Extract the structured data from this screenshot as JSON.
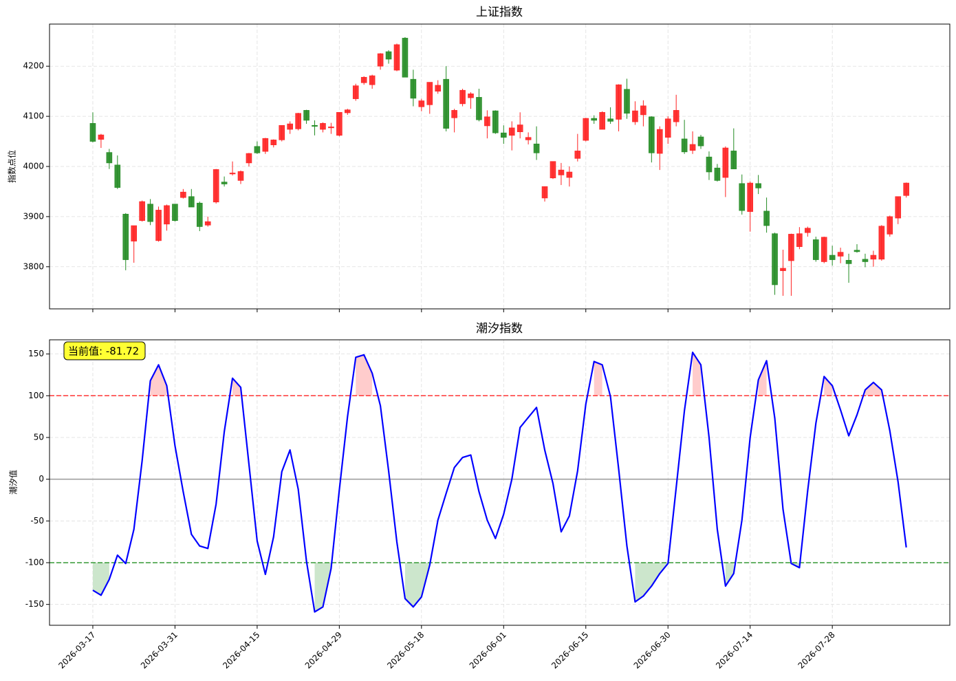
{
  "chart_data": [
    {
      "type": "candlestick",
      "title": "上证指数",
      "ylabel": "指数点位",
      "open": [
        4086,
        4054,
        4028,
        4003,
        3905,
        3851,
        3892,
        3925,
        3852,
        3885,
        3925,
        3938,
        3940,
        3927,
        3883,
        3929,
        3969,
        3985,
        3972,
        4007,
        4040,
        4030,
        4043,
        4053,
        4074,
        4075,
        4112,
        4082,
        4074,
        4077,
        4062,
        4107,
        4135,
        4167,
        4163,
        4200,
        4229,
        4192,
        4256,
        4174,
        4119,
        4123,
        4150,
        4174,
        4097,
        4125,
        4137,
        4138,
        4081,
        4111,
        4067,
        4062,
        4069,
        4053,
        4045,
        3937,
        3977,
        3983,
        3978,
        4016,
        4052,
        4096,
        4074,
        4095,
        4094,
        4154,
        4089,
        4103,
        4099,
        4026,
        4058,
        4089,
        4055,
        4032,
        4059,
        4019,
        3997,
        3978,
        4031,
        3966,
        3910,
        3966,
        3911,
        3866,
        3792,
        3812,
        3840,
        3868,
        3854,
        3810,
        3823,
        3821,
        3813,
        3833,
        3815,
        3815,
        3815,
        3865,
        3897,
        3942
      ],
      "high": [
        4108,
        4065,
        4035,
        4022,
        3907,
        3882,
        3932,
        3935,
        3920,
        3924,
        3925,
        3955,
        3955,
        3930,
        3900,
        3995,
        3980,
        4010,
        3992,
        4027,
        4050,
        4057,
        4054,
        4082,
        4090,
        4107,
        4113,
        4092,
        4088,
        4087,
        4108,
        4115,
        4165,
        4180,
        4183,
        4226,
        4232,
        4245,
        4258,
        4193,
        4135,
        4168,
        4172,
        4200,
        4115,
        4155,
        4148,
        4155,
        4112,
        4112,
        4082,
        4090,
        4108,
        4068,
        4080,
        3960,
        4010,
        4007,
        4000,
        4065,
        4097,
        4102,
        4110,
        4118,
        4164,
        4175,
        4130,
        4132,
        4100,
        4080,
        4100,
        4143,
        4093,
        4070,
        4063,
        4030,
        4005,
        4040,
        4076,
        3984,
        3970,
        3983,
        3938,
        3868,
        3834,
        3866,
        3879,
        3880,
        3860,
        3860,
        3842,
        3838,
        3826,
        3845,
        3826,
        3832,
        3883,
        3902,
        3940,
        3968
      ],
      "low": [
        4048,
        4037,
        3995,
        3955,
        3793,
        3808,
        3890,
        3883,
        3850,
        3872,
        3890,
        3936,
        3920,
        3871,
        3880,
        3926,
        3960,
        3982,
        3965,
        4000,
        4025,
        4025,
        4038,
        4050,
        4065,
        4072,
        4085,
        4062,
        4068,
        4065,
        4060,
        4103,
        4131,
        4163,
        4155,
        4193,
        4205,
        4190,
        4180,
        4120,
        4110,
        4105,
        4145,
        4070,
        4068,
        4120,
        4115,
        4090,
        4056,
        4065,
        4045,
        4032,
        4056,
        4044,
        4013,
        3930,
        3975,
        3963,
        3960,
        4010,
        4050,
        4085,
        4074,
        4085,
        4070,
        4095,
        4083,
        4080,
        4008,
        3993,
        4045,
        4080,
        4025,
        4025,
        4035,
        3973,
        3970,
        3939,
        3995,
        3904,
        3870,
        3945,
        3868,
        3744,
        3742,
        3742,
        3835,
        3860,
        3810,
        3807,
        3802,
        3807,
        3768,
        3828,
        3799,
        3800,
        3812,
        3860,
        3885,
        3938
      ],
      "close": [
        4050,
        4063,
        4007,
        3958,
        3814,
        3882,
        3930,
        3890,
        3913,
        3922,
        3892,
        3949,
        3919,
        3880,
        3890,
        3994,
        3965,
        3987,
        3990,
        4026,
        4027,
        4056,
        4053,
        4082,
        4085,
        4106,
        4092,
        4080,
        4086,
        4079,
        4108,
        4113,
        4161,
        4178,
        4181,
        4225,
        4214,
        4243,
        4178,
        4136,
        4131,
        4168,
        4162,
        4076,
        4112,
        4152,
        4145,
        4093,
        4099,
        4067,
        4058,
        4077,
        4083,
        4058,
        4027,
        3960,
        4010,
        3993,
        3989,
        4031,
        4096,
        4092,
        4108,
        4090,
        4163,
        4106,
        4111,
        4121,
        4027,
        4074,
        4095,
        4112,
        4029,
        4044,
        4041,
        3989,
        3972,
        4037,
        3995,
        3912,
        3967,
        3957,
        3882,
        3764,
        3797,
        3865,
        3866,
        3877,
        3814,
        3859,
        3814,
        3829,
        3806,
        3830,
        3810,
        3823,
        3881,
        3900,
        3940,
        3967
      ],
      "up_color": "#ff2020",
      "down_color": "#228b22",
      "ylim": [
        3716,
        4284
      ],
      "yticks": [
        3800,
        3900,
        4000,
        4100,
        4200
      ],
      "grid": true
    },
    {
      "type": "line",
      "title": "潮汐指数",
      "ylabel": "潮汐值",
      "categories": [
        "2026-03-17",
        null,
        null,
        null,
        null,
        null,
        null,
        null,
        null,
        null,
        "2026-03-31",
        null,
        null,
        null,
        null,
        null,
        null,
        null,
        null,
        null,
        "2026-04-15",
        null,
        null,
        null,
        null,
        null,
        null,
        null,
        null,
        null,
        "2026-04-29",
        null,
        null,
        null,
        null,
        null,
        null,
        null,
        null,
        null,
        "2026-05-18",
        null,
        null,
        null,
        null,
        null,
        null,
        null,
        null,
        null,
        "2026-06-01",
        null,
        null,
        null,
        null,
        null,
        null,
        null,
        null,
        null,
        "2026-06-15",
        null,
        null,
        null,
        null,
        null,
        null,
        null,
        null,
        null,
        "2026-06-30",
        null,
        null,
        null,
        null,
        null,
        null,
        null,
        null,
        null,
        "2026-07-14",
        null,
        null,
        null,
        null,
        null,
        null,
        null,
        null,
        null,
        "2026-07-28",
        null,
        null,
        null,
        null,
        null,
        null,
        null,
        null,
        null
      ],
      "values": [
        -133,
        -139,
        -120,
        -91,
        -101,
        -60,
        22,
        118,
        137,
        112,
        40,
        -15,
        -66,
        -80,
        -83,
        -30,
        57,
        121,
        110,
        18,
        -74,
        -114,
        -69,
        9,
        35,
        -12,
        -98,
        -159,
        -153,
        -107,
        -13,
        75,
        146,
        149,
        127,
        88,
        10,
        -75,
        -143,
        -153,
        -141,
        -103,
        -49,
        -17,
        14,
        26,
        29,
        -15,
        -49,
        -71,
        -42,
        0,
        62,
        74,
        86,
        35,
        -5,
        -63,
        -44,
        10,
        90,
        141,
        137,
        99,
        12,
        -80,
        -147,
        -140,
        -128,
        -113,
        -101,
        -10,
        82,
        152,
        137,
        50,
        -60,
        -128,
        -113,
        -49,
        50,
        119,
        142,
        73,
        -36,
        -101,
        -106,
        -14,
        67,
        123,
        112,
        83,
        52,
        77,
        107,
        116,
        107,
        58,
        -3,
        -81.72
      ],
      "color": "#0000ff",
      "hlines": [
        {
          "value": 100,
          "color": "#ff3333",
          "dashed": true,
          "fill": "#ffcccc",
          "fill_side": "above"
        },
        {
          "value": -100,
          "color": "#339933",
          "dashed": true,
          "fill": "#cce6cc",
          "fill_side": "below"
        },
        {
          "value": 0,
          "color": "#999999",
          "dashed": false
        }
      ],
      "annotation": {
        "text": "当前值: -81.72",
        "background": "#ffff33"
      },
      "ylim": [
        -175,
        167
      ],
      "yticks": [
        -150,
        -100,
        -50,
        0,
        50,
        100,
        150
      ],
      "grid": true
    }
  ]
}
